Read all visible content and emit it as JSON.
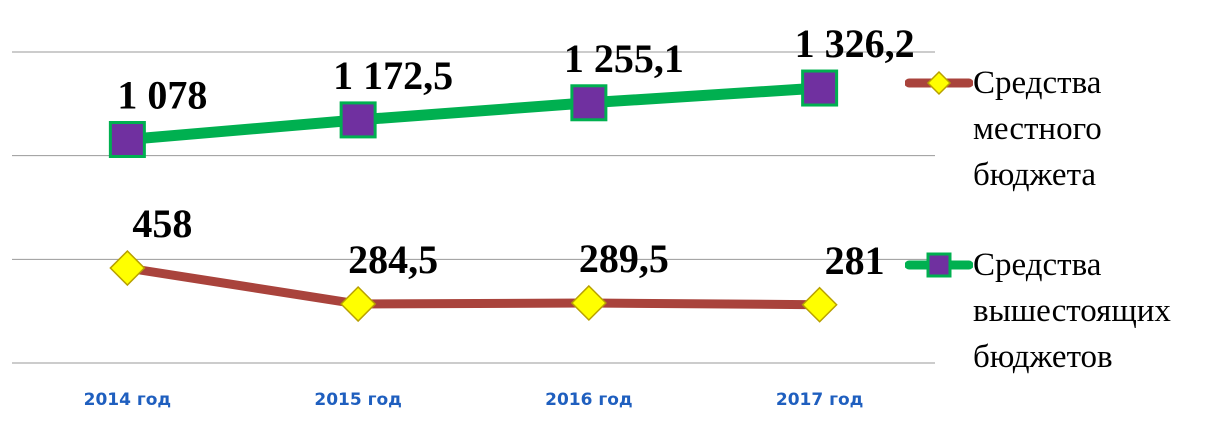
{
  "chart_data": {
    "type": "line",
    "categories": [
      "2014 год",
      "2015 год",
      "2016 год",
      "2017 год"
    ],
    "series": [
      {
        "name": "Средства местного бюджета",
        "color": "#a9433c",
        "marker": "diamond",
        "marker_color": "#ffff00",
        "values": [
          458,
          284.5,
          289.5,
          281
        ],
        "value_labels": [
          "458",
          "284,5",
          "289,5",
          "281"
        ]
      },
      {
        "name": "Средства вышестоящих бюджетов",
        "color": "#00b050",
        "marker": "square",
        "marker_color": "#7030a0",
        "values": [
          1078,
          1172.5,
          1255.1,
          1326.2
        ],
        "value_labels": [
          "1 078",
          "1 172,5",
          "1 255,1",
          "1 326,2"
        ]
      }
    ],
    "ylim": [
      0,
      1500
    ],
    "yticks": [
      0,
      500,
      1000,
      1500
    ],
    "grid": true,
    "legend": "right"
  }
}
